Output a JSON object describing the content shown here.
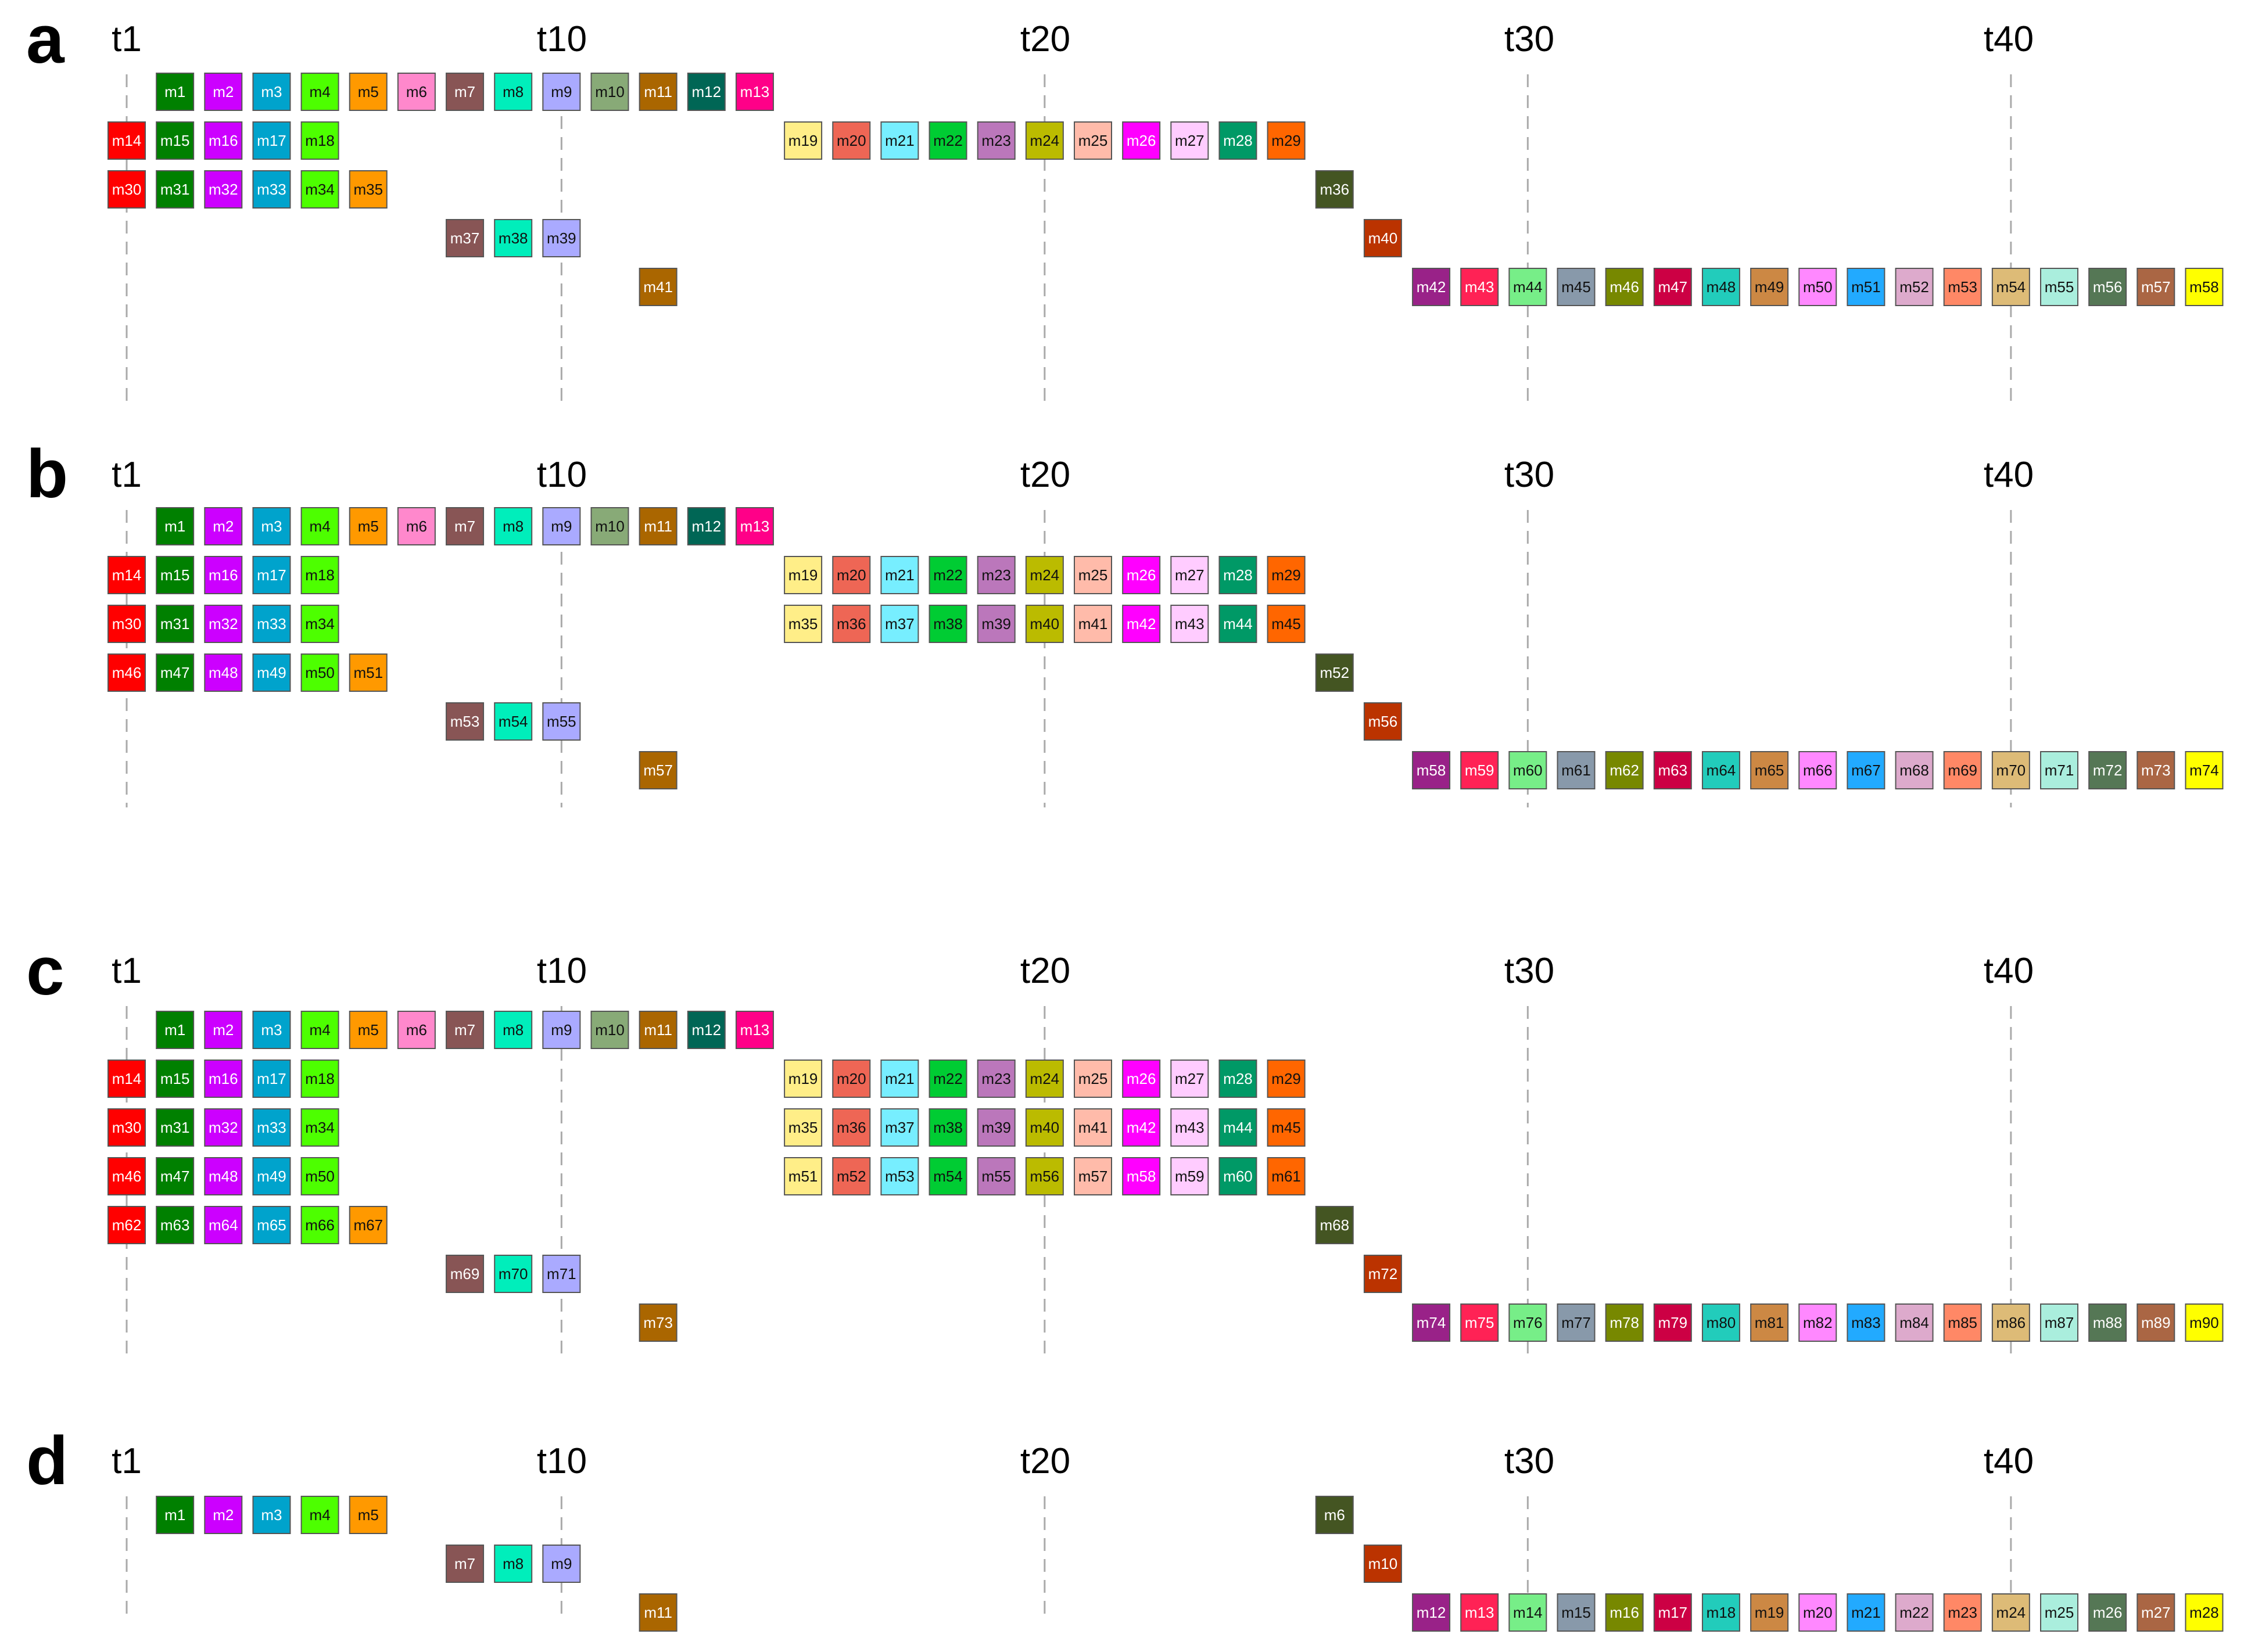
{
  "palette": [
    "#ff0000",
    "#008000",
    "#cc00ff",
    "#00a3cc",
    "#4dff00",
    "#ff9900",
    "#ff88cc",
    "#885555",
    "#00eebb",
    "#aaaaff",
    "#88aa77",
    "#aa6600",
    "#006655",
    "#ff0088",
    "#ffee88",
    "#ee6655",
    "#77eeff",
    "#00cc33",
    "#bb77bb",
    "#bbbb00",
    "#ffbbaa",
    "#ff00ff",
    "#ffccff",
    "#009966",
    "#ff6600",
    "#445522",
    "#bb3300",
    "#992288",
    "#ff2255",
    "#77ee88",
    "#8899aa",
    "#778800",
    "#cc0044",
    "#22ccbb",
    "#cc8844",
    "#ff88ff",
    "#22aaff",
    "#ddaacc",
    "#ff8866",
    "#ddbb77",
    "#aaeedd",
    "#557755",
    "#aa6644",
    "#ffff00"
  ],
  "labels": {
    "panel_a": "a",
    "panel_b": "b",
    "panel_c": "c",
    "panel_d": "d",
    "ticks": [
      "t1",
      "t10",
      "t20",
      "t30",
      "t40"
    ]
  },
  "panels": [
    {
      "label": "a",
      "rows": [
        {
          "start": 2,
          "n": 13,
          "m0": 1,
          "cat": 2
        },
        {
          "start": 1,
          "n": 5,
          "m0": 14,
          "cat": 1
        },
        {
          "start": 15,
          "n": 11,
          "m0": 19,
          "cat": 15
        },
        {
          "start": 1,
          "n": 6,
          "m0": 30,
          "cat": 1
        },
        {
          "start": 26,
          "n": 1,
          "m0": 36,
          "cat": 26
        },
        {
          "start": 8,
          "n": 3,
          "m0": 37,
          "cat": 8
        },
        {
          "start": 27,
          "n": 1,
          "m0": 40,
          "cat": 27
        },
        {
          "start": 12,
          "n": 1,
          "m0": 41,
          "cat": 12
        },
        {
          "start": 28,
          "n": 17,
          "m0": 42,
          "cat": 28
        }
      ],
      "row_of": [
        0,
        1,
        1,
        2,
        2,
        3,
        3,
        4,
        4
      ]
    },
    {
      "label": "b",
      "rows": [
        {
          "start": 2,
          "n": 13,
          "m0": 1,
          "cat": 2
        },
        {
          "start": 1,
          "n": 5,
          "m0": 14,
          "cat": 1
        },
        {
          "start": 15,
          "n": 11,
          "m0": 19,
          "cat": 15
        },
        {
          "start": 1,
          "n": 5,
          "m0": 30,
          "cat": 1
        },
        {
          "start": 15,
          "n": 11,
          "m0": 35,
          "cat": 15
        },
        {
          "start": 1,
          "n": 6,
          "m0": 46,
          "cat": 1
        },
        {
          "start": 26,
          "n": 1,
          "m0": 52,
          "cat": 26
        },
        {
          "start": 8,
          "n": 3,
          "m0": 53,
          "cat": 8
        },
        {
          "start": 27,
          "n": 1,
          "m0": 56,
          "cat": 27
        },
        {
          "start": 12,
          "n": 1,
          "m0": 57,
          "cat": 12
        },
        {
          "start": 28,
          "n": 17,
          "m0": 58,
          "cat": 28
        }
      ],
      "row_of": [
        0,
        1,
        1,
        2,
        2,
        3,
        3,
        4,
        4,
        5,
        5
      ]
    },
    {
      "label": "c",
      "rows": [
        {
          "start": 2,
          "n": 13,
          "m0": 1,
          "cat": 2
        },
        {
          "start": 1,
          "n": 5,
          "m0": 14,
          "cat": 1
        },
        {
          "start": 15,
          "n": 11,
          "m0": 19,
          "cat": 15
        },
        {
          "start": 1,
          "n": 5,
          "m0": 30,
          "cat": 1
        },
        {
          "start": 15,
          "n": 11,
          "m0": 35,
          "cat": 15
        },
        {
          "start": 1,
          "n": 5,
          "m0": 46,
          "cat": 1
        },
        {
          "start": 15,
          "n": 11,
          "m0": 51,
          "cat": 15
        },
        {
          "start": 1,
          "n": 6,
          "m0": 62,
          "cat": 1
        },
        {
          "start": 26,
          "n": 1,
          "m0": 68,
          "cat": 26
        },
        {
          "start": 8,
          "n": 3,
          "m0": 69,
          "cat": 8
        },
        {
          "start": 27,
          "n": 1,
          "m0": 72,
          "cat": 27
        },
        {
          "start": 12,
          "n": 1,
          "m0": 73,
          "cat": 12
        },
        {
          "start": 28,
          "n": 17,
          "m0": 74,
          "cat": 28
        }
      ],
      "row_of": [
        0,
        1,
        1,
        2,
        2,
        3,
        3,
        4,
        4,
        5,
        5,
        6,
        6
      ]
    },
    {
      "label": "d",
      "rows": [
        {
          "start": 2,
          "n": 5,
          "m0": 1,
          "cat": 2
        },
        {
          "start": 26,
          "n": 1,
          "m0": 6,
          "cat": 26
        },
        {
          "start": 8,
          "n": 3,
          "m0": 7,
          "cat": 8
        },
        {
          "start": 27,
          "n": 1,
          "m0": 10,
          "cat": 27
        },
        {
          "start": 12,
          "n": 1,
          "m0": 11,
          "cat": 12
        },
        {
          "start": 28,
          "n": 17,
          "m0": 12,
          "cat": 28
        }
      ],
      "row_of": [
        0,
        0,
        1,
        1,
        2,
        2
      ]
    }
  ]
}
